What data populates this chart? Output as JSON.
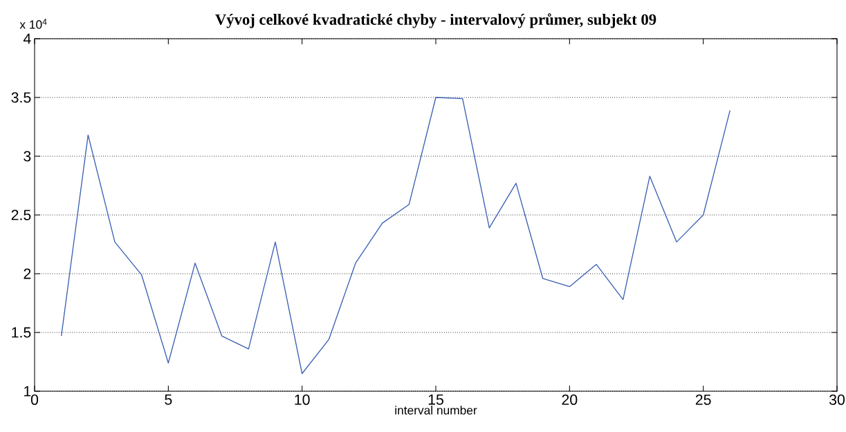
{
  "chart_data": {
    "type": "line",
    "title": "Vývoj celkové kvadratické chyby - intervalový průmer, subjekt 09",
    "xlabel": "interval number",
    "annotations": [
      "x 10$^{4}$"
    ],
    "x": [
      1,
      2,
      3,
      4,
      5,
      6,
      7,
      8,
      9,
      10,
      11,
      12,
      13,
      14,
      15,
      16,
      17,
      18,
      19,
      20,
      21,
      22,
      23,
      24,
      25,
      26
    ],
    "series": [
      {
        "color": "#3a5fb4",
        "values": [
          1.47,
          3.18,
          2.27,
          1.99,
          1.24,
          2.09,
          1.47,
          1.36,
          2.27,
          1.15,
          1.44,
          2.09,
          2.43,
          2.59,
          3.5,
          3.49,
          2.39,
          2.77,
          1.96,
          1.89,
          2.08,
          1.78,
          2.83,
          2.27,
          2.5,
          3.39
        ]
      }
    ],
    "xlim": [
      0,
      30
    ],
    "ylim": [
      1,
      4
    ],
    "xticks": [
      0,
      5,
      10,
      15,
      20,
      25,
      30
    ],
    "yticks": [
      1,
      1.5,
      2,
      2.5,
      3,
      3.5,
      4
    ],
    "grid": "y",
    "marker": "none",
    "line_style": "solid"
  }
}
